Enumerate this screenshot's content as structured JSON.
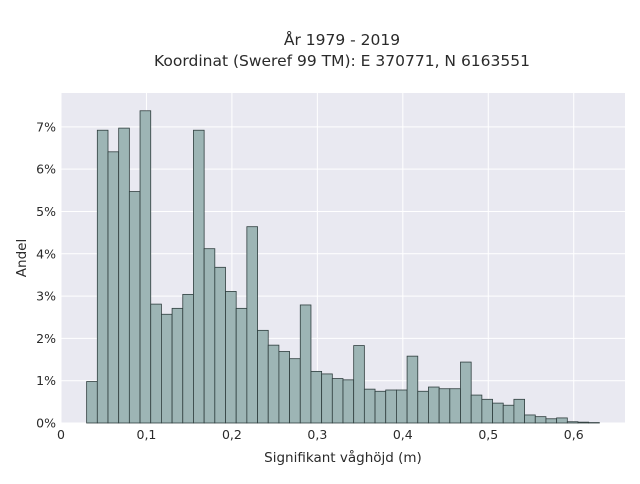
{
  "chart_data": {
    "type": "bar",
    "title_line1": "År 1979 - 2019",
    "title_line2": "Koordinat (Sweref 99 TM): E 370771, N 6163551",
    "xlabel": "Signifikant våghöjd (m)",
    "ylabel": "Andel",
    "xlim": [
      0,
      0.66
    ],
    "ylim": [
      0,
      0.078
    ],
    "x_ticks": [
      {
        "value": 0,
        "label": "0"
      },
      {
        "value": 0.1,
        "label": "0,1"
      },
      {
        "value": 0.2,
        "label": "0,2"
      },
      {
        "value": 0.3,
        "label": "0,3"
      },
      {
        "value": 0.4,
        "label": "0,4"
      },
      {
        "value": 0.5,
        "label": "0,5"
      },
      {
        "value": 0.6,
        "label": "0,6"
      }
    ],
    "y_ticks": [
      {
        "value": 0,
        "label": "0%"
      },
      {
        "value": 0.01,
        "label": "1%"
      },
      {
        "value": 0.02,
        "label": "2%"
      },
      {
        "value": 0.03,
        "label": "3%"
      },
      {
        "value": 0.04,
        "label": "4%"
      },
      {
        "value": 0.05,
        "label": "5%"
      },
      {
        "value": 0.06,
        "label": "6%"
      },
      {
        "value": 0.07,
        "label": "7%"
      }
    ],
    "bin_width": 0.0125,
    "bin_starts": [
      0.03,
      0.0425,
      0.055,
      0.0675,
      0.08,
      0.0925,
      0.105,
      0.1175,
      0.13,
      0.1425,
      0.155,
      0.1675,
      0.18,
      0.1925,
      0.205,
      0.2175,
      0.23,
      0.2425,
      0.255,
      0.2675,
      0.28,
      0.2925,
      0.305,
      0.3175,
      0.33,
      0.3425,
      0.355,
      0.3675,
      0.38,
      0.3925,
      0.405,
      0.4175,
      0.43,
      0.4425,
      0.455,
      0.4675,
      0.48,
      0.4925,
      0.505,
      0.5175,
      0.53,
      0.5425,
      0.555,
      0.5675,
      0.58,
      0.5925,
      0.605,
      0.6175
    ],
    "values": [
      0.0098,
      0.0692,
      0.0641,
      0.0697,
      0.0547,
      0.0738,
      0.0281,
      0.0257,
      0.0271,
      0.0304,
      0.0692,
      0.0412,
      0.0368,
      0.0311,
      0.0271,
      0.0464,
      0.0219,
      0.0184,
      0.0169,
      0.0152,
      0.0279,
      0.0122,
      0.0116,
      0.0105,
      0.0102,
      0.0183,
      0.008,
      0.0075,
      0.0078,
      0.0078,
      0.0158,
      0.0075,
      0.0085,
      0.0081,
      0.0081,
      0.0144,
      0.0066,
      0.0056,
      0.0047,
      0.0042,
      0.0056,
      0.0019,
      0.0015,
      0.001,
      0.0012,
      0.0003,
      0.0002,
      0.0001
    ],
    "bar_color": "#9db5b5",
    "bar_edge_color": "#2f3e3e",
    "plot_background": "#e9e9f1",
    "grid": true,
    "grid_color": "#ffffff"
  }
}
